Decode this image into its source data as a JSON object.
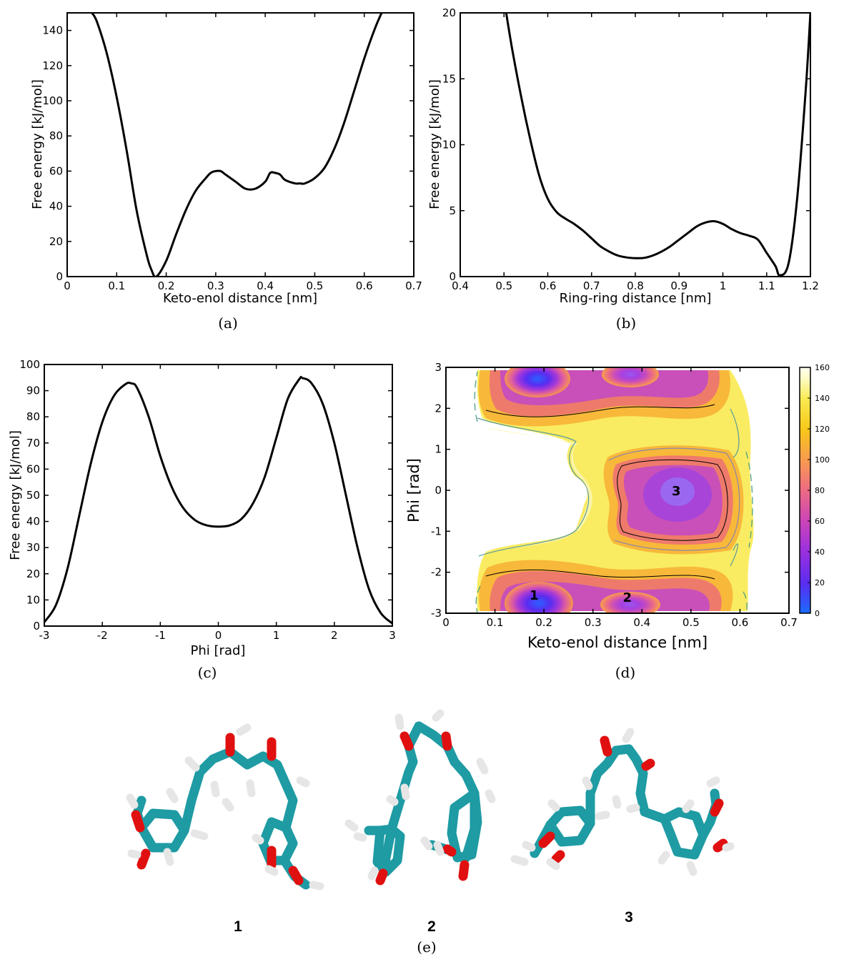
{
  "chart_data": [
    {
      "id": "a",
      "type": "line",
      "caption": "(a)",
      "xlabel": "Keto-enol distance [nm]",
      "ylabel": "Free energy [kJ/mol]",
      "xlim": [
        0,
        0.7
      ],
      "ylim": [
        0,
        150
      ],
      "xticks": [
        "0",
        "0.1",
        "0.2",
        "0.3",
        "0.4",
        "0.5",
        "0.6",
        "0.7"
      ],
      "yticks": [
        "0",
        "20",
        "40",
        "60",
        "80",
        "100",
        "120",
        "140"
      ],
      "series": [
        {
          "x": [
            0.05,
            0.06,
            0.08,
            0.1,
            0.12,
            0.14,
            0.16,
            0.17,
            0.18,
            0.2,
            0.22,
            0.24,
            0.26,
            0.28,
            0.29,
            0.3,
            0.31,
            0.32,
            0.34,
            0.36,
            0.38,
            0.4,
            0.41,
            0.42,
            0.43,
            0.44,
            0.46,
            0.47,
            0.48,
            0.5,
            0.52,
            0.54,
            0.56,
            0.58,
            0.6,
            0.62,
            0.635
          ],
          "y": [
            150,
            145,
            127,
            102,
            72,
            38,
            13,
            4,
            0,
            9,
            24,
            38,
            49,
            56,
            59,
            60,
            60,
            58,
            54,
            50,
            50,
            54,
            59,
            59,
            58,
            55,
            53,
            53,
            53,
            56,
            62,
            73,
            88,
            106,
            124,
            140,
            150
          ]
        }
      ]
    },
    {
      "id": "b",
      "type": "line",
      "caption": "(b)",
      "xlabel": "Ring-ring distance [nm]",
      "ylabel": "Free energy [kJ/mol]",
      "xlim": [
        0.4,
        1.2
      ],
      "ylim": [
        0,
        20
      ],
      "xticks": [
        "0.4",
        "0.5",
        "0.6",
        "0.7",
        "0.8",
        "0.9",
        "1",
        "1.1",
        "1.2"
      ],
      "yticks": [
        "0",
        "5",
        "10",
        "15",
        "20"
      ],
      "series": [
        {
          "x": [
            0.505,
            0.52,
            0.54,
            0.56,
            0.58,
            0.6,
            0.62,
            0.64,
            0.66,
            0.68,
            0.7,
            0.72,
            0.74,
            0.76,
            0.78,
            0.8,
            0.82,
            0.84,
            0.86,
            0.88,
            0.9,
            0.92,
            0.94,
            0.96,
            0.98,
            1.0,
            1.02,
            1.04,
            1.06,
            1.08,
            1.1,
            1.12,
            1.13,
            1.15,
            1.17,
            1.19,
            1.2
          ],
          "y": [
            20,
            17,
            13.5,
            10.4,
            7.7,
            5.9,
            4.9,
            4.4,
            4.0,
            3.5,
            2.9,
            2.3,
            1.9,
            1.6,
            1.45,
            1.4,
            1.42,
            1.6,
            1.9,
            2.3,
            2.8,
            3.3,
            3.8,
            4.1,
            4.2,
            4.0,
            3.6,
            3.3,
            3.1,
            2.8,
            1.8,
            0.8,
            0.1,
            1.0,
            6.0,
            14.5,
            20
          ]
        }
      ]
    },
    {
      "id": "c",
      "type": "line",
      "caption": "(c)",
      "xlabel": "Phi [rad]",
      "ylabel": "Free energy [kJ/mol]",
      "xlim": [
        -3,
        3
      ],
      "ylim": [
        0,
        100
      ],
      "xticks": [
        "-3",
        "-2",
        "-1",
        "0",
        "1",
        "2",
        "3"
      ],
      "yticks": [
        "0",
        "10",
        "20",
        "30",
        "40",
        "50",
        "60",
        "70",
        "80",
        "90",
        "100"
      ],
      "series": [
        {
          "x": [
            -3.0,
            -2.8,
            -2.6,
            -2.4,
            -2.2,
            -2.0,
            -1.8,
            -1.6,
            -1.5,
            -1.4,
            -1.2,
            -1.0,
            -0.8,
            -0.6,
            -0.4,
            -0.2,
            0.0,
            0.2,
            0.4,
            0.6,
            0.8,
            1.0,
            1.2,
            1.4,
            1.45,
            1.6,
            1.8,
            2.0,
            2.2,
            2.4,
            2.6,
            2.8,
            3.0
          ],
          "y": [
            1.5,
            8,
            22,
            42,
            62,
            78,
            88,
            92.5,
            92.8,
            91,
            80,
            65,
            53,
            45,
            40.5,
            38.5,
            38,
            38.5,
            41,
            47,
            57,
            72,
            87,
            94.5,
            94.8,
            93,
            85,
            70,
            50,
            30,
            14,
            5,
            1
          ]
        }
      ]
    },
    {
      "id": "d",
      "type": "heatmap",
      "caption": "(d)",
      "xlabel": "Keto-enol distance [nm]",
      "ylabel": "Phi [rad]",
      "xlim": [
        0,
        0.7
      ],
      "ylim": [
        -3,
        3
      ],
      "xticks": [
        "0",
        "0.1",
        "0.2",
        "0.3",
        "0.4",
        "0.5",
        "0.6",
        "0.7"
      ],
      "yticks": [
        "-3",
        "-2",
        "-1",
        "0",
        "1",
        "2",
        "3"
      ],
      "colorbar": {
        "range": [
          0,
          160
        ],
        "ticks": [
          "0",
          "20",
          "40",
          "60",
          "80",
          "100",
          "120",
          "140",
          "160"
        ],
        "colors": [
          "#1a6cff",
          "#5a2cf0",
          "#9a30e0",
          "#cc44b8",
          "#ee6a84",
          "#f79a50",
          "#f8c81a",
          "#f9ea50",
          "#fdfbc0",
          "#fffff0"
        ]
      },
      "minima": [
        {
          "label": "1",
          "x": 0.18,
          "y": -2.55,
          "value": 0
        },
        {
          "label": "2",
          "x": 0.37,
          "y": -2.6,
          "value": 50
        },
        {
          "label": "3",
          "x": 0.47,
          "y": 0.0,
          "value": 48
        }
      ]
    }
  ],
  "structures": {
    "caption": "(e)",
    "labels": [
      "1",
      "2",
      "3"
    ]
  },
  "colors": {
    "carbon": "#1e9ba3",
    "oxygen": "#e01010",
    "hydrogen": "#e6e6e6",
    "line": "#000000"
  }
}
